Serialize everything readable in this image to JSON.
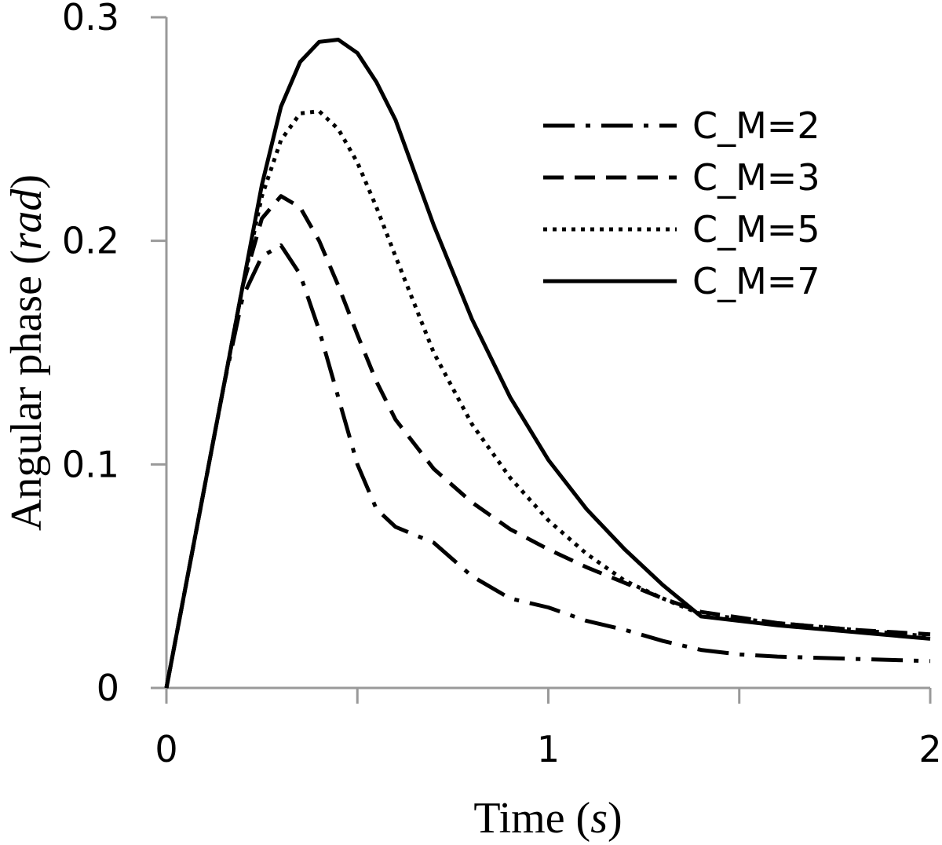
{
  "chart_data": {
    "type": "line",
    "xlabel": {
      "text": "Time (",
      "unit": "s",
      "close": ")"
    },
    "ylabel": {
      "text": "Angular phase (",
      "unit": "rad",
      "close": ")"
    },
    "xlim": [
      0,
      2
    ],
    "ylim": [
      0,
      0.3
    ],
    "xticks": [
      0,
      1,
      2
    ],
    "xtick_labels": [
      "0",
      "1",
      "2"
    ],
    "xminor_ticks": [
      0.5,
      1.5
    ],
    "yticks": [
      0,
      0.1,
      0.2,
      0.3
    ],
    "ytick_labels": [
      "0",
      "0.1",
      "0.2",
      "0.3"
    ],
    "grid": false,
    "legend_position": "top-right",
    "series": [
      {
        "name": "C_M=2",
        "style": "dashdot",
        "x": [
          0,
          0.05,
          0.1,
          0.15,
          0.2,
          0.25,
          0.3,
          0.35,
          0.4,
          0.45,
          0.5,
          0.55,
          0.6,
          0.7,
          0.8,
          0.9,
          1.0,
          1.1,
          1.2,
          1.3,
          1.4,
          1.5,
          1.6,
          1.8,
          2.0
        ],
        "y": [
          0,
          0.045,
          0.09,
          0.135,
          0.175,
          0.193,
          0.198,
          0.185,
          0.16,
          0.13,
          0.1,
          0.08,
          0.072,
          0.065,
          0.05,
          0.04,
          0.036,
          0.03,
          0.026,
          0.021,
          0.017,
          0.015,
          0.014,
          0.013,
          0.012
        ]
      },
      {
        "name": "C_M=3",
        "style": "dashed",
        "x": [
          0,
          0.05,
          0.1,
          0.15,
          0.2,
          0.25,
          0.3,
          0.35,
          0.4,
          0.45,
          0.5,
          0.55,
          0.6,
          0.7,
          0.8,
          0.9,
          1.0,
          1.1,
          1.2,
          1.3,
          1.4,
          1.6,
          1.8,
          2.0
        ],
        "y": [
          0,
          0.045,
          0.09,
          0.135,
          0.18,
          0.21,
          0.22,
          0.215,
          0.2,
          0.18,
          0.158,
          0.137,
          0.12,
          0.098,
          0.083,
          0.071,
          0.062,
          0.054,
          0.047,
          0.04,
          0.034,
          0.029,
          0.026,
          0.024
        ]
      },
      {
        "name": "C_M=5",
        "style": "dotted",
        "x": [
          0,
          0.05,
          0.1,
          0.15,
          0.2,
          0.25,
          0.3,
          0.35,
          0.4,
          0.45,
          0.5,
          0.55,
          0.6,
          0.7,
          0.8,
          0.9,
          1.0,
          1.1,
          1.2,
          1.3,
          1.4,
          1.6,
          1.8,
          2.0
        ],
        "y": [
          0,
          0.045,
          0.09,
          0.135,
          0.18,
          0.22,
          0.245,
          0.257,
          0.258,
          0.25,
          0.235,
          0.215,
          0.193,
          0.15,
          0.118,
          0.094,
          0.075,
          0.06,
          0.048,
          0.04,
          0.033,
          0.029,
          0.026,
          0.023
        ]
      },
      {
        "name": "C_M=7",
        "style": "solid",
        "x": [
          0,
          0.05,
          0.1,
          0.15,
          0.2,
          0.25,
          0.3,
          0.35,
          0.4,
          0.45,
          0.5,
          0.55,
          0.6,
          0.7,
          0.8,
          0.9,
          1.0,
          1.1,
          1.2,
          1.3,
          1.4,
          1.6,
          1.8,
          2.0
        ],
        "y": [
          0,
          0.045,
          0.09,
          0.135,
          0.18,
          0.225,
          0.26,
          0.28,
          0.289,
          0.29,
          0.284,
          0.271,
          0.254,
          0.207,
          0.165,
          0.13,
          0.102,
          0.08,
          0.062,
          0.046,
          0.032,
          0.028,
          0.025,
          0.022
        ]
      }
    ]
  }
}
